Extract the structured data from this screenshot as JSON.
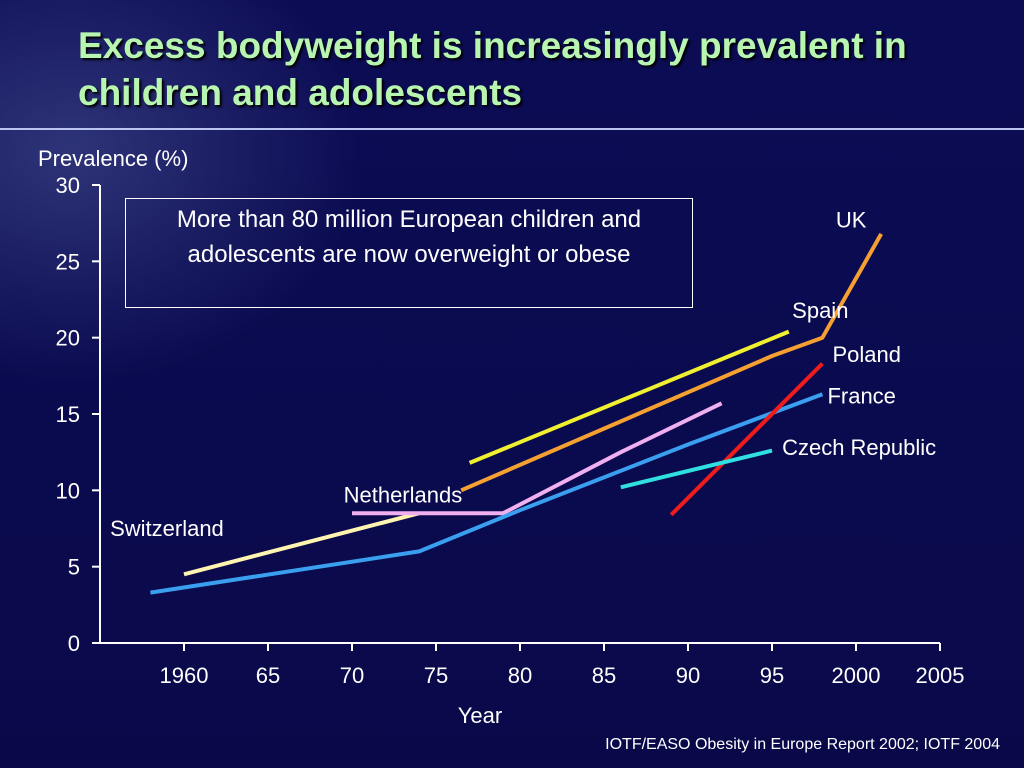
{
  "slide": {
    "title": "Excess bodyweight is increasingly prevalent in children and adolescents",
    "callout": "More than 80 million European children and adolescents are now overweight or obese",
    "source": "IOTF/EASO Obesity in Europe Report 2002; IOTF 2004",
    "colors": {
      "background": "#0a0a4a",
      "title": "#b8f5b0",
      "text": "#ffffff"
    }
  },
  "chart_data": {
    "type": "line",
    "title": "",
    "xlabel": "Year",
    "ylabel": "Prevalence (%)",
    "xlim": [
      1955,
      2005
    ],
    "ylim": [
      0,
      30
    ],
    "x_ticks": [
      1960,
      1965,
      1970,
      1975,
      1980,
      1985,
      1990,
      1995,
      2000,
      2005
    ],
    "x_tick_labels": [
      "1960",
      "65",
      "70",
      "75",
      "80",
      "85",
      "90",
      "95",
      "2000",
      "2005"
    ],
    "y_ticks": [
      0,
      5,
      10,
      15,
      20,
      25,
      30
    ],
    "y_tick_labels": [
      "0",
      "5",
      "10",
      "15",
      "20",
      "25",
      "30"
    ],
    "grid": false,
    "legend": "none (series labeled inline)",
    "series": [
      {
        "name": "Switzerland",
        "color": "#fff5b0",
        "x": [
          1960,
          1974
        ],
        "y": [
          4.5,
          8.5
        ]
      },
      {
        "name": "Netherlands",
        "color": "#f0b0f0",
        "x": [
          1970,
          1979,
          1986,
          1992
        ],
        "y": [
          8.5,
          8.5,
          12.5,
          15.7
        ]
      },
      {
        "name": "France",
        "color": "#3a9fef",
        "x": [
          1958,
          1974,
          1980,
          1990,
          1998
        ],
        "y": [
          3.3,
          6.0,
          8.7,
          13.0,
          16.3
        ]
      },
      {
        "name": "Spain",
        "color": "#f0f030",
        "x": [
          1977,
          1996
        ],
        "y": [
          11.8,
          20.4
        ]
      },
      {
        "name": "UK",
        "color": "#f5a030",
        "x": [
          1976.5,
          1995,
          1998,
          2001.5
        ],
        "y": [
          10.0,
          18.8,
          20.0,
          26.8
        ]
      },
      {
        "name": "Poland",
        "color": "#ee1c1c",
        "x": [
          1989,
          1998
        ],
        "y": [
          8.4,
          18.3
        ]
      },
      {
        "name": "Czech Republic",
        "color": "#30e0e0",
        "x": [
          1986,
          1995
        ],
        "y": [
          10.2,
          12.6
        ]
      }
    ],
    "annotations": [
      {
        "text": "UK",
        "x": 1998.8,
        "y": 27.2
      },
      {
        "text": "Spain",
        "x": 1996.2,
        "y": 21.3
      },
      {
        "text": "Poland",
        "x": 1998.6,
        "y": 18.4
      },
      {
        "text": "France",
        "x": 1998.3,
        "y": 15.7
      },
      {
        "text": "Czech Republic",
        "x": 1995.6,
        "y": 12.3
      },
      {
        "text": "Netherlands",
        "x": 1969.5,
        "y": 9.2
      },
      {
        "text": "Switzerland",
        "x": 1955.6,
        "y": 7.0
      }
    ]
  }
}
